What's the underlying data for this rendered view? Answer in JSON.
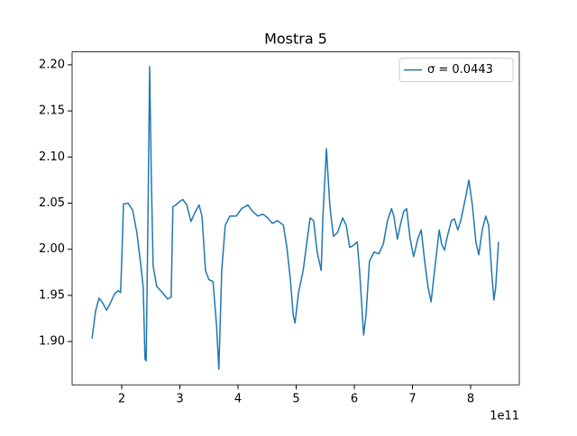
{
  "chart_data": {
    "type": "line",
    "title": "Mostra 5",
    "x": [
      149000000000.0,
      155000000000.0,
      161000000000.0,
      166000000000.0,
      174000000000.0,
      180000000000.0,
      188000000000.0,
      194000000000.0,
      198000000000.0,
      200000000000.0,
      203000000000.0,
      211000000000.0,
      219000000000.0,
      226000000000.0,
      233000000000.0,
      237000000000.0,
      240000000000.0,
      242000000000.0,
      245000000000.0,
      248000000000.0,
      251000000000.0,
      254000000000.0,
      260000000000.0,
      270000000000.0,
      279000000000.0,
      285000000000.0,
      288000000000.0,
      293000000000.0,
      298000000000.0,
      305000000000.0,
      312000000000.0,
      319000000000.0,
      326000000000.0,
      333000000000.0,
      338000000000.0,
      344000000000.0,
      350000000000.0,
      357000000000.0,
      363000000000.0,
      367000000000.0,
      372000000000.0,
      378000000000.0,
      386000000000.0,
      397000000000.0,
      406000000000.0,
      417000000000.0,
      425000000000.0,
      434000000000.0,
      443000000000.0,
      451000000000.0,
      459000000000.0,
      468000000000.0,
      478000000000.0,
      484000000000.0,
      490000000000.0,
      495000000000.0,
      498000000000.0,
      504000000000.0,
      512000000000.0,
      518000000000.0,
      524000000000.0,
      530000000000.0,
      536000000000.0,
      543000000000.0,
      546000000000.0,
      552000000000.0,
      558000000000.0,
      564000000000.0,
      571000000000.0,
      580000000000.0,
      586000000000.0,
      592000000000.0,
      598000000000.0,
      605000000000.0,
      609000000000.0,
      616000000000.0,
      620000000000.0,
      626000000000.0,
      634000000000.0,
      642000000000.0,
      650000000000.0,
      657000000000.0,
      664000000000.0,
      668000000000.0,
      674000000000.0,
      679000000000.0,
      685000000000.0,
      690000000000.0,
      696000000000.0,
      702000000000.0,
      709000000000.0,
      715000000000.0,
      721000000000.0,
      727000000000.0,
      732000000000.0,
      738000000000.0,
      746000000000.0,
      750000000000.0,
      755000000000.0,
      760000000000.0,
      767000000000.0,
      772000000000.0,
      778000000000.0,
      783000000000.0,
      791000000000.0,
      797000000000.0,
      803000000000.0,
      809000000000.0,
      814000000000.0,
      820000000000.0,
      826000000000.0,
      831000000000.0,
      836000000000.0,
      840000000000.0,
      843000000000.0,
      848000000000.0
    ],
    "series": [
      {
        "name": "σ = 0.0443",
        "color": "#1f77b4",
        "values": [
          1.903,
          1.933,
          1.947,
          1.943,
          1.934,
          1.941,
          1.952,
          1.955,
          1.953,
          1.987,
          2.049,
          2.05,
          2.042,
          2.018,
          1.982,
          1.958,
          1.881,
          1.879,
          2.026,
          2.198,
          2.075,
          1.982,
          1.96,
          1.953,
          1.946,
          1.948,
          2.046,
          2.048,
          2.051,
          2.054,
          2.048,
          2.03,
          2.04,
          2.048,
          2.036,
          1.977,
          1.967,
          1.965,
          1.918,
          1.87,
          1.977,
          2.026,
          2.036,
          2.036,
          2.044,
          2.048,
          2.041,
          2.036,
          2.038,
          2.034,
          2.028,
          2.031,
          2.026,
          2.002,
          1.967,
          1.928,
          1.92,
          1.953,
          1.977,
          2.006,
          2.034,
          2.031,
          1.997,
          1.977,
          2.036,
          2.109,
          2.046,
          2.014,
          2.018,
          2.034,
          2.026,
          2.002,
          2.004,
          2.008,
          1.977,
          1.907,
          1.928,
          1.987,
          1.997,
          1.995,
          2.006,
          2.031,
          2.044,
          2.036,
          2.011,
          2.026,
          2.041,
          2.044,
          2.011,
          1.992,
          2.011,
          2.021,
          1.987,
          1.958,
          1.943,
          1.977,
          2.021,
          2.006,
          1.999,
          2.014,
          2.031,
          2.033,
          2.021,
          2.031,
          2.055,
          2.075,
          2.048,
          2.008,
          1.994,
          2.021,
          2.036,
          2.026,
          1.977,
          1.945,
          1.958,
          2.008
        ]
      }
    ],
    "xlim": [
      114700000000.0,
      883700000000.0
    ],
    "xticks": [
      {
        "value": 200000000000.0,
        "label": "2"
      },
      {
        "value": 300000000000.0,
        "label": "3"
      },
      {
        "value": 400000000000.0,
        "label": "4"
      },
      {
        "value": 500000000000.0,
        "label": "5"
      },
      {
        "value": 600000000000.0,
        "label": "6"
      },
      {
        "value": 700000000000.0,
        "label": "7"
      },
      {
        "value": 800000000000.0,
        "label": "8"
      }
    ],
    "x_offset_label": "1e11",
    "ylim": [
      1.853,
      2.214
    ],
    "yticks": [
      {
        "value": 1.9,
        "label": "1.90"
      },
      {
        "value": 1.95,
        "label": "1.95"
      },
      {
        "value": 2.0,
        "label": "2.00"
      },
      {
        "value": 2.05,
        "label": "2.05"
      },
      {
        "value": 2.1,
        "label": "2.10"
      },
      {
        "value": 2.15,
        "label": "2.15"
      },
      {
        "value": 2.2,
        "label": "2.20"
      }
    ],
    "legend": "upper right"
  }
}
